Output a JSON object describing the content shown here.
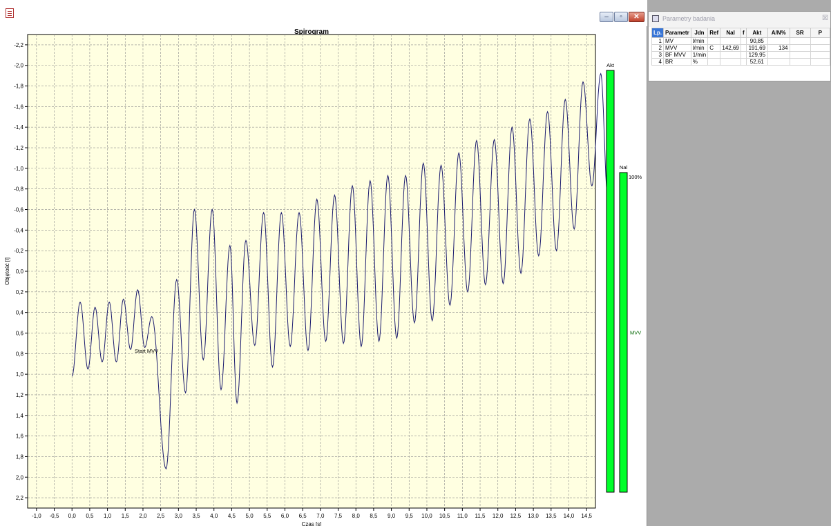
{
  "chart_window": {
    "title": "Spirogram",
    "buttons": {
      "minimize": "–",
      "maximize": "▫",
      "close": "✕"
    }
  },
  "chart_data": {
    "type": "line",
    "title": "Spirogram",
    "xlabel": "Czas [s]",
    "ylabel": "Objętość [l]",
    "xlim": [
      -1.25,
      14.75
    ],
    "ylim": [
      2.3,
      -2.3
    ],
    "y_inverted": true,
    "grid": true,
    "x_ticks": [
      "-1,0",
      "-0,5",
      "0,0",
      "0,5",
      "1,0",
      "1,5",
      "2,0",
      "2,5",
      "3,0",
      "3,5",
      "4,0",
      "4,5",
      "5,0",
      "5,5",
      "6,0",
      "6,5",
      "7,0",
      "7,5",
      "8,0",
      "8,5",
      "9,0",
      "9,5",
      "10,0",
      "10,5",
      "11,0",
      "11,5",
      "12,0",
      "12,5",
      "13,0",
      "13,5",
      "14,0",
      "14,5"
    ],
    "y_ticks": [
      "-2,2",
      "-2,0",
      "-1,8",
      "-1,6",
      "-1,4",
      "-1,2",
      "-1,0",
      "-0,8",
      "-0,6",
      "-0,4",
      "-0,2",
      "0,0",
      "0,2",
      "0,4",
      "0,6",
      "0,8",
      "1,0",
      "1,2",
      "1,4",
      "1,6",
      "1,8",
      "2,0",
      "2,2"
    ],
    "extrema": [
      [
        0.0,
        1.02
      ],
      [
        0.23,
        0.3
      ],
      [
        0.45,
        0.95
      ],
      [
        0.65,
        0.35
      ],
      [
        0.85,
        0.88
      ],
      [
        1.05,
        0.3
      ],
      [
        1.25,
        0.88
      ],
      [
        1.45,
        0.27
      ],
      [
        1.65,
        0.76
      ],
      [
        1.85,
        0.18
      ],
      [
        2.05,
        0.74
      ],
      [
        2.25,
        0.44
      ],
      [
        2.65,
        1.92
      ],
      [
        2.95,
        0.08
      ],
      [
        3.2,
        1.18
      ],
      [
        3.45,
        -0.6
      ],
      [
        3.7,
        0.86
      ],
      [
        3.95,
        -0.6
      ],
      [
        4.2,
        1.15
      ],
      [
        4.45,
        -0.25
      ],
      [
        4.65,
        1.28
      ],
      [
        4.9,
        -0.3
      ],
      [
        5.15,
        0.72
      ],
      [
        5.4,
        -0.57
      ],
      [
        5.65,
        0.93
      ],
      [
        5.9,
        -0.57
      ],
      [
        6.15,
        0.73
      ],
      [
        6.4,
        -0.57
      ],
      [
        6.65,
        0.77
      ],
      [
        6.9,
        -0.7
      ],
      [
        7.15,
        0.68
      ],
      [
        7.4,
        -0.74
      ],
      [
        7.65,
        0.7
      ],
      [
        7.9,
        -0.83
      ],
      [
        8.15,
        0.73
      ],
      [
        8.4,
        -0.88
      ],
      [
        8.65,
        0.68
      ],
      [
        8.9,
        -0.93
      ],
      [
        9.15,
        0.65
      ],
      [
        9.4,
        -0.93
      ],
      [
        9.65,
        0.5
      ],
      [
        9.9,
        -1.05
      ],
      [
        10.15,
        0.48
      ],
      [
        10.4,
        -1.03
      ],
      [
        10.65,
        0.33
      ],
      [
        10.9,
        -1.15
      ],
      [
        11.15,
        0.2
      ],
      [
        11.4,
        -1.27
      ],
      [
        11.65,
        0.13
      ],
      [
        11.9,
        -1.28
      ],
      [
        12.15,
        0.12
      ],
      [
        12.4,
        -1.4
      ],
      [
        12.65,
        0.02
      ],
      [
        12.9,
        -1.48
      ],
      [
        13.15,
        -0.15
      ],
      [
        13.4,
        -1.55
      ],
      [
        13.65,
        -0.2
      ],
      [
        13.9,
        -1.67
      ],
      [
        14.15,
        -0.41
      ],
      [
        14.4,
        -1.84
      ],
      [
        14.65,
        -0.83
      ],
      [
        14.9,
        -1.92
      ],
      [
        15.1,
        -0.7
      ]
    ],
    "annotation": {
      "x": 2.1,
      "y": 0.79,
      "text": "Start MVV"
    },
    "bars": [
      {
        "label": "Akt",
        "value_pct": 100,
        "color": "#00ff2a"
      },
      {
        "label": "Nal",
        "value_pct": 100,
        "color": "#00ff2a",
        "pct_label": "100%",
        "side_label": "MVV"
      }
    ]
  },
  "param_window": {
    "title": "Parametry badania",
    "close": "☒",
    "headers": [
      "Lp.",
      "Parametr",
      "Jdn",
      "Ref",
      "Nal",
      "f",
      "Akt",
      "A/N%",
      "SR",
      "P"
    ],
    "rows": [
      [
        "1",
        "MV",
        "l/min",
        "",
        "",
        "",
        "90,85",
        "",
        "",
        ""
      ],
      [
        "2",
        "MVV",
        "l/min",
        "C",
        "142,69",
        "",
        "191,69",
        "134",
        "",
        ""
      ],
      [
        "3",
        "BF MVV",
        "1/min",
        "",
        "",
        "",
        "129,95",
        "",
        "",
        ""
      ],
      [
        "4",
        "BR",
        "%",
        "",
        "",
        "",
        "52,61",
        "",
        "",
        ""
      ]
    ]
  }
}
